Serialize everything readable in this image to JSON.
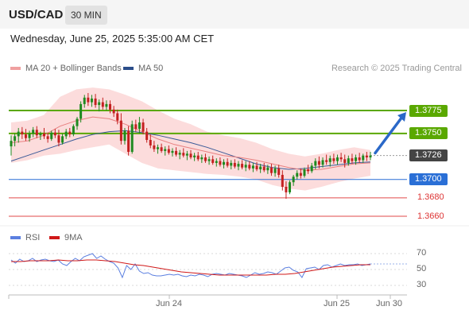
{
  "header": {
    "symbol": "USD/CAD",
    "timeframe": "30 MIN"
  },
  "datetime": "Wednesday, June 25, 2025 5:35:00 AM CET",
  "legend": {
    "ma20_label": "MA 20 + Bollinger Bands",
    "ma50_label": "MA 50",
    "credit": "Research © 2025 Trading Central",
    "rsi_label": "RSI",
    "ma9_label": "9MA"
  },
  "colors": {
    "resistance": "#5aa800",
    "support": "#2a6fd6",
    "support_weak": "#e24a4a",
    "current": "#444444",
    "bull": "#1f8a20",
    "bear": "#c42020",
    "bands": "#fbd0d0",
    "ma20": "#e88080",
    "ma50": "#3a5a98",
    "rsi": "#5b7fe0",
    "ma9": "#d01818"
  },
  "levels": [
    {
      "value": 1.3775,
      "label": "1.3775",
      "kind": "resistance"
    },
    {
      "value": 1.375,
      "label": "1.3750",
      "kind": "resistance"
    },
    {
      "value": 1.3726,
      "label": "1.3726",
      "kind": "current"
    },
    {
      "value": 1.37,
      "label": "1.3700",
      "kind": "support"
    },
    {
      "value": 1.368,
      "label": "1.3680",
      "kind": "support_weak"
    },
    {
      "value": 1.366,
      "label": "1.3660",
      "kind": "support_weak"
    }
  ],
  "chart_data": {
    "type": "candlestick",
    "pair": "USD/CAD",
    "interval": "30 MIN",
    "x_labels": [
      "Jun 24",
      "Jun 25",
      "Jun 30"
    ],
    "candles": [
      [
        1.3736,
        1.3748,
        1.3726,
        1.3742
      ],
      [
        1.3742,
        1.375,
        1.3736,
        1.3747
      ],
      [
        1.3747,
        1.3756,
        1.374,
        1.3752
      ],
      [
        1.3752,
        1.3757,
        1.3744,
        1.3749
      ],
      [
        1.3749,
        1.3755,
        1.3742,
        1.3745
      ],
      [
        1.3745,
        1.3753,
        1.3741,
        1.375
      ],
      [
        1.375,
        1.3757,
        1.3746,
        1.3754
      ],
      [
        1.3754,
        1.3758,
        1.3745,
        1.3748
      ],
      [
        1.3748,
        1.3752,
        1.3743,
        1.375
      ],
      [
        1.375,
        1.3756,
        1.3744,
        1.3747
      ],
      [
        1.3747,
        1.3751,
        1.374,
        1.3744
      ],
      [
        1.3744,
        1.3753,
        1.3742,
        1.3751
      ],
      [
        1.3751,
        1.3755,
        1.3745,
        1.3748
      ],
      [
        1.3748,
        1.3754,
        1.3736,
        1.374
      ],
      [
        1.374,
        1.375,
        1.3738,
        1.3747
      ],
      [
        1.3747,
        1.3755,
        1.3744,
        1.3752
      ],
      [
        1.3752,
        1.3756,
        1.3746,
        1.3749
      ],
      [
        1.3749,
        1.376,
        1.3747,
        1.3758
      ],
      [
        1.3758,
        1.3768,
        1.3754,
        1.3766
      ],
      [
        1.3766,
        1.3785,
        1.3762,
        1.3782
      ],
      [
        1.3782,
        1.3792,
        1.3778,
        1.3789
      ],
      [
        1.3789,
        1.3794,
        1.378,
        1.3784
      ],
      [
        1.3784,
        1.3792,
        1.3779,
        1.3788
      ],
      [
        1.3788,
        1.3793,
        1.3778,
        1.3781
      ],
      [
        1.3781,
        1.3787,
        1.3774,
        1.3784
      ],
      [
        1.3784,
        1.3789,
        1.3776,
        1.3779
      ],
      [
        1.3779,
        1.3786,
        1.3775,
        1.3782
      ],
      [
        1.3782,
        1.3786,
        1.3772,
        1.3776
      ],
      [
        1.3776,
        1.378,
        1.3768,
        1.3772
      ],
      [
        1.3772,
        1.3776,
        1.376,
        1.3764
      ],
      [
        1.3764,
        1.3772,
        1.3738,
        1.3742
      ],
      [
        1.3742,
        1.3756,
        1.3738,
        1.3753
      ],
      [
        1.3753,
        1.3758,
        1.3726,
        1.373
      ],
      [
        1.373,
        1.3764,
        1.3728,
        1.376
      ],
      [
        1.376,
        1.3765,
        1.3752,
        1.3755
      ],
      [
        1.3755,
        1.3768,
        1.375,
        1.3762
      ],
      [
        1.3762,
        1.3766,
        1.3749,
        1.3752
      ],
      [
        1.3752,
        1.3756,
        1.374,
        1.3743
      ],
      [
        1.3743,
        1.3749,
        1.3734,
        1.3737
      ],
      [
        1.3737,
        1.3742,
        1.373,
        1.3733
      ],
      [
        1.3733,
        1.3738,
        1.3728,
        1.3735
      ],
      [
        1.3735,
        1.3739,
        1.3729,
        1.3731
      ],
      [
        1.3731,
        1.3736,
        1.3726,
        1.3733
      ],
      [
        1.3733,
        1.3737,
        1.3727,
        1.3729
      ],
      [
        1.3729,
        1.3734,
        1.3725,
        1.3731
      ],
      [
        1.3731,
        1.3735,
        1.3725,
        1.3727
      ],
      [
        1.3727,
        1.3732,
        1.3722,
        1.3729
      ],
      [
        1.3729,
        1.3734,
        1.3724,
        1.3726
      ],
      [
        1.3726,
        1.3731,
        1.3721,
        1.3728
      ],
      [
        1.3728,
        1.3732,
        1.3722,
        1.3724
      ],
      [
        1.3724,
        1.3729,
        1.372,
        1.3726
      ],
      [
        1.3726,
        1.373,
        1.372,
        1.3722
      ],
      [
        1.3722,
        1.3727,
        1.3718,
        1.3724
      ],
      [
        1.3724,
        1.3728,
        1.3718,
        1.372
      ],
      [
        1.372,
        1.3725,
        1.3716,
        1.3722
      ],
      [
        1.3722,
        1.3726,
        1.3716,
        1.3718
      ],
      [
        1.3718,
        1.3723,
        1.3714,
        1.372
      ],
      [
        1.372,
        1.3724,
        1.3714,
        1.3716
      ],
      [
        1.3716,
        1.3722,
        1.3712,
        1.3719
      ],
      [
        1.3719,
        1.3723,
        1.3713,
        1.3715
      ],
      [
        1.3715,
        1.3721,
        1.3711,
        1.3718
      ],
      [
        1.3718,
        1.3722,
        1.3712,
        1.3714
      ],
      [
        1.3714,
        1.372,
        1.371,
        1.3717
      ],
      [
        1.3717,
        1.3721,
        1.3711,
        1.3713
      ],
      [
        1.3713,
        1.372,
        1.3709,
        1.3716
      ],
      [
        1.3716,
        1.372,
        1.371,
        1.3712
      ],
      [
        1.3712,
        1.3718,
        1.3708,
        1.3715
      ],
      [
        1.3715,
        1.3719,
        1.3709,
        1.3711
      ],
      [
        1.3711,
        1.3717,
        1.3707,
        1.3714
      ],
      [
        1.3714,
        1.3718,
        1.3708,
        1.371
      ],
      [
        1.371,
        1.3716,
        1.3706,
        1.3713
      ],
      [
        1.3713,
        1.3717,
        1.3704,
        1.3707
      ],
      [
        1.3707,
        1.3715,
        1.3703,
        1.3712
      ],
      [
        1.3712,
        1.3716,
        1.3702,
        1.3705
      ],
      [
        1.3705,
        1.371,
        1.3688,
        1.3692
      ],
      [
        1.3692,
        1.3698,
        1.3679,
        1.3686
      ],
      [
        1.3686,
        1.3699,
        1.3684,
        1.3697
      ],
      [
        1.3697,
        1.3705,
        1.3693,
        1.3703
      ],
      [
        1.3703,
        1.371,
        1.37,
        1.3707
      ],
      [
        1.3707,
        1.3712,
        1.3701,
        1.3704
      ],
      [
        1.3704,
        1.3713,
        1.3702,
        1.3711
      ],
      [
        1.3711,
        1.3716,
        1.3706,
        1.3709
      ],
      [
        1.3709,
        1.3718,
        1.3707,
        1.3715
      ],
      [
        1.3715,
        1.3723,
        1.3711,
        1.372
      ],
      [
        1.372,
        1.3725,
        1.3712,
        1.3716
      ],
      [
        1.3716,
        1.3724,
        1.3713,
        1.3721
      ],
      [
        1.3721,
        1.3727,
        1.3716,
        1.3719
      ],
      [
        1.3719,
        1.3726,
        1.3714,
        1.3723
      ],
      [
        1.3723,
        1.3728,
        1.3717,
        1.372
      ],
      [
        1.372,
        1.3727,
        1.3716,
        1.3724
      ],
      [
        1.3724,
        1.3729,
        1.3719,
        1.3722
      ],
      [
        1.3722,
        1.3727,
        1.3713,
        1.3718
      ],
      [
        1.3718,
        1.3726,
        1.3715,
        1.3723
      ],
      [
        1.3723,
        1.3728,
        1.3717,
        1.372
      ],
      [
        1.372,
        1.3727,
        1.3716,
        1.3724
      ],
      [
        1.3724,
        1.3729,
        1.3718,
        1.3721
      ],
      [
        1.3721,
        1.3728,
        1.3718,
        1.3726
      ],
      [
        1.3726,
        1.373,
        1.372,
        1.3724
      ],
      [
        1.3724,
        1.373,
        1.3721,
        1.3726
      ]
    ],
    "bollinger_upper": [
      1.3762,
      1.3764,
      1.377,
      1.379,
      1.3798,
      1.38,
      1.3798,
      1.3792,
      1.3785,
      1.3775,
      1.3766,
      1.376,
      1.3752,
      1.3748,
      1.3745,
      1.374,
      1.3733,
      1.3728,
      1.3725,
      1.3728,
      1.3732,
      1.3735,
      1.3732
    ],
    "bollinger_lower": [
      1.3718,
      1.3721,
      1.3726,
      1.3728,
      1.3732,
      1.3735,
      1.3738,
      1.3728,
      1.3718,
      1.3712,
      1.371,
      1.3708,
      1.3706,
      1.3705,
      1.3703,
      1.37,
      1.3694,
      1.369,
      1.3688,
      1.3692,
      1.3697,
      1.3701,
      1.3704
    ],
    "ma20": [
      1.374,
      1.3742,
      1.3748,
      1.3758,
      1.3764,
      1.3768,
      1.3766,
      1.376,
      1.3752,
      1.3744,
      1.3738,
      1.3734,
      1.373,
      1.3726,
      1.3724,
      1.3721,
      1.3717,
      1.3713,
      1.371,
      1.3711,
      1.3714,
      1.3717,
      1.3718
    ],
    "ma50": [
      1.372,
      1.3726,
      1.3732,
      1.3738,
      1.3744,
      1.3749,
      1.3752,
      1.3753,
      1.3751,
      1.3748,
      1.3744,
      1.374,
      1.3735,
      1.3729,
      1.3723,
      1.3717,
      1.3713,
      1.3711,
      1.3712,
      1.3714,
      1.3716,
      1.3718,
      1.3719
    ],
    "forecast_arrow": {
      "from": 1.3727,
      "to": 1.3775
    },
    "rsi": {
      "ticks": [
        70,
        50,
        30
      ],
      "range": [
        20,
        80
      ],
      "values": [
        62,
        58,
        63,
        60,
        61,
        64,
        60,
        62,
        63,
        61,
        60,
        62,
        57,
        55,
        60,
        64,
        61,
        66,
        68,
        70,
        64,
        67,
        63,
        60,
        58,
        52,
        40,
        55,
        50,
        57,
        48,
        45,
        46,
        43,
        42,
        42,
        43,
        44,
        43,
        44,
        42,
        41,
        43,
        42,
        44,
        43,
        41,
        44,
        45,
        44,
        43,
        45,
        44,
        43,
        42,
        40,
        43,
        46,
        44,
        45,
        47,
        46,
        44,
        48,
        52,
        53,
        49,
        47,
        40,
        51,
        52,
        53,
        50,
        55,
        56,
        53,
        55,
        57,
        55,
        56,
        56,
        57,
        55,
        56,
        57
      ],
      "ma9": [
        60,
        60,
        61,
        61,
        61,
        62,
        61,
        61,
        62,
        62,
        61,
        60,
        58,
        56,
        55,
        53,
        51,
        49,
        47,
        46,
        45,
        44,
        43,
        43,
        43,
        43,
        43,
        43,
        44,
        44,
        45,
        47,
        49,
        51,
        53,
        54,
        55,
        56,
        56
      ]
    }
  }
}
